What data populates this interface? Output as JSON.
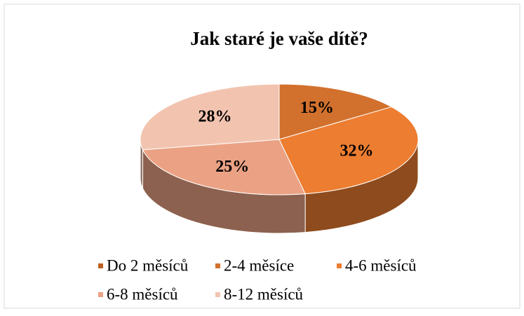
{
  "chart_data": {
    "type": "pie",
    "title": "Jak staré je vaše dítě?",
    "categories": [
      "Do 2 měsíců",
      "2-4 měsíce",
      "4-6 měsíců",
      "6-8 měsíců",
      "8-12 měsíců"
    ],
    "values": [
      0,
      15,
      32,
      25,
      28
    ],
    "value_labels": [
      null,
      "15%",
      "32%",
      "25%",
      "28%"
    ],
    "colors": [
      "#c0601f",
      "#d2712d",
      "#ed7d31",
      "#eba284",
      "#f2c4b0"
    ],
    "legend": "bottom"
  }
}
